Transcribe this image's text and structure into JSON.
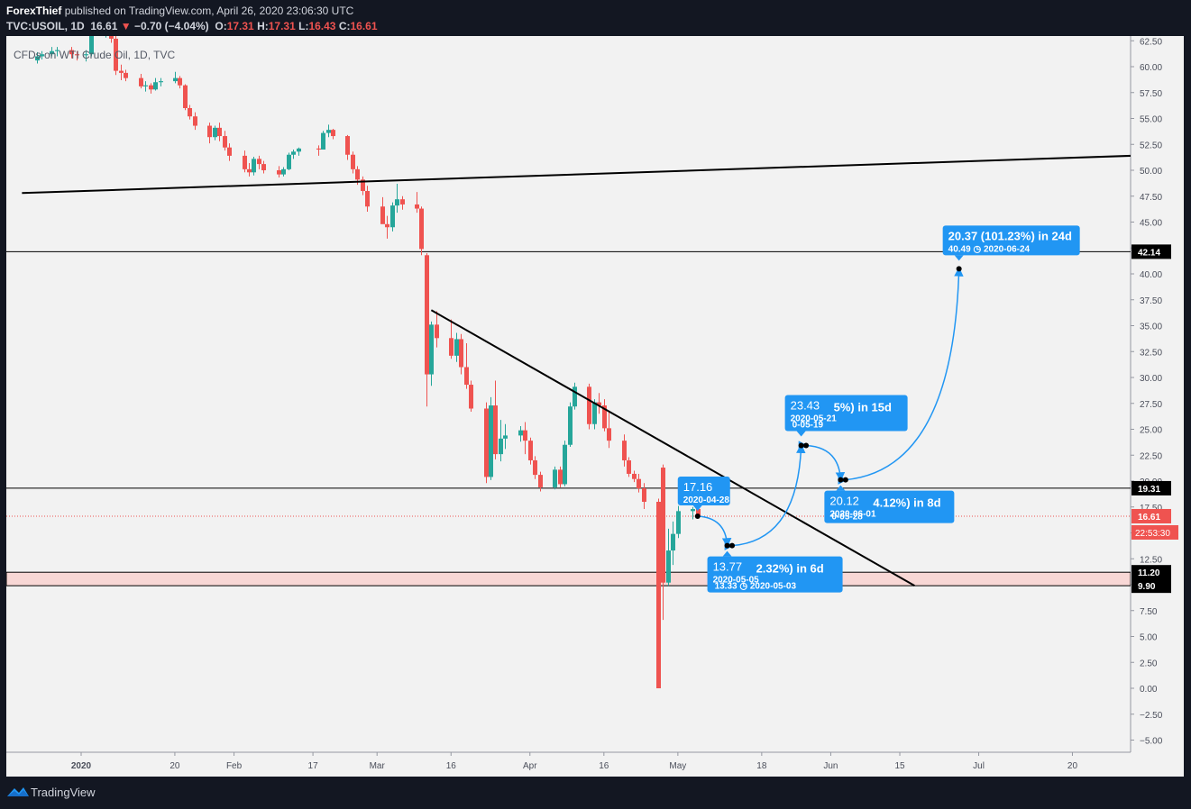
{
  "header": {
    "publisher": "ForexThief",
    "published_text": "published on TradingView.com, April 26, 2020 23:06:30 UTC",
    "symbol": "TVC:USOIL, 1D",
    "last": "16.61",
    "change": "−0.70 (−4.04%)",
    "o_label": "O:",
    "o": "17.31",
    "h_label": "H:",
    "h": "17.31",
    "l_label": "L:",
    "l": "16.43",
    "c_label": "C:",
    "c": "16.61"
  },
  "legend_text": "CFDs on WTI Crude Oil, 1D, TVC",
  "footer": {
    "brand": "TradingView"
  },
  "colors": {
    "up": "#26a69a",
    "down": "#ef5350",
    "accent": "#2196f3",
    "zone": "#f8d7d5",
    "background": "#f2f2f2"
  },
  "chart_data": {
    "type": "candlestick",
    "ylim": [
      -6,
      63
    ],
    "y_ticks": [
      "62.50",
      "60.00",
      "57.50",
      "55.00",
      "52.50",
      "50.00",
      "47.50",
      "45.00",
      "42.50",
      "40.00",
      "37.50",
      "35.00",
      "32.50",
      "30.00",
      "27.50",
      "25.00",
      "22.50",
      "20.00",
      "17.50",
      "15.00",
      "12.50",
      "10.00",
      "7.50",
      "5.00",
      "2.50",
      "0.00",
      "−2.50",
      "−5.00"
    ],
    "x_ticks": [
      {
        "label": "2020",
        "date": "2020-01-01"
      },
      {
        "label": "20",
        "date": "2020-01-20"
      },
      {
        "label": "Feb",
        "date": "2020-02-01"
      },
      {
        "label": "17",
        "date": "2020-02-17"
      },
      {
        "label": "Mar",
        "date": "2020-03-01"
      },
      {
        "label": "16",
        "date": "2020-03-16"
      },
      {
        "label": "Apr",
        "date": "2020-04-01"
      },
      {
        "label": "16",
        "date": "2020-04-16"
      },
      {
        "label": "May",
        "date": "2020-05-01"
      },
      {
        "label": "18",
        "date": "2020-05-18"
      },
      {
        "label": "Jun",
        "date": "2020-06-01"
      },
      {
        "label": "15",
        "date": "2020-06-15"
      },
      {
        "label": "Jul",
        "date": "2020-07-01"
      },
      {
        "label": "20",
        "date": "2020-07-20"
      }
    ],
    "candles": [
      {
        "d": "2019-12-23",
        "o": 60.6,
        "h": 61.4,
        "l": 60.3,
        "c": 61.0
      },
      {
        "d": "2019-12-24",
        "o": 61.0,
        "h": 61.5,
        "l": 60.7,
        "c": 61.2
      },
      {
        "d": "2019-12-26",
        "o": 61.2,
        "h": 61.9,
        "l": 61.0,
        "c": 61.5
      },
      {
        "d": "2019-12-27",
        "o": 61.5,
        "h": 61.9,
        "l": 61.0,
        "c": 61.6
      },
      {
        "d": "2019-12-30",
        "o": 61.6,
        "h": 61.9,
        "l": 60.8,
        "c": 61.2
      },
      {
        "d": "2019-12-31",
        "o": 61.2,
        "h": 61.5,
        "l": 60.6,
        "c": 61.1
      },
      {
        "d": "2020-01-02",
        "o": 61.1,
        "h": 61.6,
        "l": 60.5,
        "c": 61.2
      },
      {
        "d": "2020-01-03",
        "o": 61.2,
        "h": 63.8,
        "l": 61.0,
        "c": 63.0
      },
      {
        "d": "2020-01-06",
        "o": 63.0,
        "h": 64.8,
        "l": 62.8,
        "c": 63.3
      },
      {
        "d": "2020-01-07",
        "o": 63.3,
        "h": 63.7,
        "l": 62.3,
        "c": 62.7
      },
      {
        "d": "2020-01-08",
        "o": 62.7,
        "h": 65.6,
        "l": 59.2,
        "c": 59.6
      },
      {
        "d": "2020-01-09",
        "o": 59.6,
        "h": 60.2,
        "l": 58.7,
        "c": 59.4
      },
      {
        "d": "2020-01-10",
        "o": 59.4,
        "h": 59.7,
        "l": 58.6,
        "c": 58.9
      },
      {
        "d": "2020-01-13",
        "o": 58.9,
        "h": 59.3,
        "l": 57.9,
        "c": 58.1
      },
      {
        "d": "2020-01-14",
        "o": 58.1,
        "h": 58.6,
        "l": 57.6,
        "c": 58.2
      },
      {
        "d": "2020-01-15",
        "o": 58.2,
        "h": 58.4,
        "l": 57.4,
        "c": 57.8
      },
      {
        "d": "2020-01-16",
        "o": 57.8,
        "h": 58.9,
        "l": 57.7,
        "c": 58.5
      },
      {
        "d": "2020-01-17",
        "o": 58.5,
        "h": 58.9,
        "l": 58.1,
        "c": 58.6
      },
      {
        "d": "2020-01-20",
        "o": 58.6,
        "h": 59.5,
        "l": 58.4,
        "c": 58.9
      },
      {
        "d": "2020-01-21",
        "o": 58.9,
        "h": 59.1,
        "l": 57.9,
        "c": 58.2
      },
      {
        "d": "2020-01-22",
        "o": 58.2,
        "h": 58.3,
        "l": 55.8,
        "c": 56.0
      },
      {
        "d": "2020-01-23",
        "o": 56.0,
        "h": 56.3,
        "l": 54.9,
        "c": 55.2
      },
      {
        "d": "2020-01-24",
        "o": 55.2,
        "h": 55.6,
        "l": 53.9,
        "c": 54.3
      },
      {
        "d": "2020-01-27",
        "o": 54.3,
        "h": 54.6,
        "l": 52.6,
        "c": 53.2
      },
      {
        "d": "2020-01-28",
        "o": 53.2,
        "h": 54.3,
        "l": 52.9,
        "c": 54.1
      },
      {
        "d": "2020-01-29",
        "o": 54.1,
        "h": 54.6,
        "l": 52.8,
        "c": 53.3
      },
      {
        "d": "2020-01-30",
        "o": 53.3,
        "h": 53.8,
        "l": 51.9,
        "c": 52.2
      },
      {
        "d": "2020-01-31",
        "o": 52.2,
        "h": 52.6,
        "l": 50.9,
        "c": 51.4
      },
      {
        "d": "2020-02-03",
        "o": 51.4,
        "h": 51.9,
        "l": 49.8,
        "c": 50.1
      },
      {
        "d": "2020-02-04",
        "o": 50.1,
        "h": 50.7,
        "l": 49.4,
        "c": 49.8
      },
      {
        "d": "2020-02-05",
        "o": 49.8,
        "h": 51.3,
        "l": 49.5,
        "c": 51.1
      },
      {
        "d": "2020-02-06",
        "o": 51.1,
        "h": 51.4,
        "l": 50.1,
        "c": 50.6
      },
      {
        "d": "2020-02-07",
        "o": 50.6,
        "h": 50.9,
        "l": 49.7,
        "c": 50.0
      },
      {
        "d": "2020-02-10",
        "o": 50.0,
        "h": 50.4,
        "l": 49.3,
        "c": 49.6
      },
      {
        "d": "2020-02-11",
        "o": 49.6,
        "h": 50.3,
        "l": 49.4,
        "c": 50.1
      },
      {
        "d": "2020-02-12",
        "o": 50.1,
        "h": 51.7,
        "l": 50.0,
        "c": 51.5
      },
      {
        "d": "2020-02-13",
        "o": 51.5,
        "h": 52.0,
        "l": 51.1,
        "c": 51.8
      },
      {
        "d": "2020-02-14",
        "o": 51.8,
        "h": 52.2,
        "l": 51.4,
        "c": 52.1
      },
      {
        "d": "2020-02-18",
        "o": 52.1,
        "h": 52.4,
        "l": 51.4,
        "c": 52.0
      },
      {
        "d": "2020-02-19",
        "o": 52.0,
        "h": 53.8,
        "l": 52.0,
        "c": 53.6
      },
      {
        "d": "2020-02-20",
        "o": 53.6,
        "h": 54.4,
        "l": 53.2,
        "c": 53.9
      },
      {
        "d": "2020-02-21",
        "o": 53.9,
        "h": 54.0,
        "l": 53.0,
        "c": 53.3
      },
      {
        "d": "2020-02-24",
        "o": 53.3,
        "h": 53.4,
        "l": 51.0,
        "c": 51.5
      },
      {
        "d": "2020-02-25",
        "o": 51.5,
        "h": 51.8,
        "l": 49.7,
        "c": 50.1
      },
      {
        "d": "2020-02-26",
        "o": 50.1,
        "h": 50.4,
        "l": 48.6,
        "c": 49.1
      },
      {
        "d": "2020-02-27",
        "o": 49.1,
        "h": 49.4,
        "l": 47.6,
        "c": 48.0
      },
      {
        "d": "2020-02-28",
        "o": 48.0,
        "h": 48.5,
        "l": 46.0,
        "c": 46.5
      },
      {
        "d": "2020-03-02",
        "o": 46.5,
        "h": 47.4,
        "l": 44.9,
        "c": 44.8
      },
      {
        "d": "2020-03-03",
        "o": 44.8,
        "h": 45.6,
        "l": 43.4,
        "c": 44.5
      },
      {
        "d": "2020-03-04",
        "o": 44.5,
        "h": 46.9,
        "l": 44.1,
        "c": 46.6
      },
      {
        "d": "2020-03-05",
        "o": 46.6,
        "h": 48.7,
        "l": 45.9,
        "c": 47.2
      },
      {
        "d": "2020-03-06",
        "o": 47.2,
        "h": 47.5,
        "l": 46.2,
        "c": 46.7
      },
      {
        "d": "2020-03-09",
        "o": 46.7,
        "h": 47.9,
        "l": 45.9,
        "c": 46.3
      },
      {
        "d": "2020-03-10",
        "o": 46.3,
        "h": 46.5,
        "l": 41.8,
        "c": 42.4
      },
      {
        "d": "2020-03-11",
        "o": 41.8,
        "h": 42.0,
        "l": 27.2,
        "c": 30.3
      },
      {
        "d": "2020-03-12",
        "o": 30.3,
        "h": 35.4,
        "l": 29.2,
        "c": 35.1
      },
      {
        "d": "2020-03-13",
        "o": 35.1,
        "h": 36.4,
        "l": 32.9,
        "c": 33.8
      },
      {
        "d": "2020-03-16",
        "o": 33.8,
        "h": 35.6,
        "l": 31.8,
        "c": 32.1
      },
      {
        "d": "2020-03-17",
        "o": 32.1,
        "h": 34.3,
        "l": 31.5,
        "c": 33.7
      },
      {
        "d": "2020-03-18",
        "o": 33.7,
        "h": 34.2,
        "l": 30.3,
        "c": 31.0
      },
      {
        "d": "2020-03-19",
        "o": 31.0,
        "h": 33.3,
        "l": 28.9,
        "c": 29.3
      },
      {
        "d": "2020-03-20",
        "o": 29.3,
        "h": 29.7,
        "l": 26.7,
        "c": 27.0
      },
      {
        "d": "2020-03-23",
        "o": 27.0,
        "h": 27.6,
        "l": 19.8,
        "c": 20.4
      },
      {
        "d": "2020-03-24",
        "o": 20.4,
        "h": 28.1,
        "l": 20.1,
        "c": 27.3
      },
      {
        "d": "2020-03-25",
        "o": 27.3,
        "h": 29.7,
        "l": 22.1,
        "c": 22.6
      },
      {
        "d": "2020-03-26",
        "o": 22.6,
        "h": 25.9,
        "l": 21.9,
        "c": 24.1
      },
      {
        "d": "2020-03-27",
        "o": 24.1,
        "h": 25.5,
        "l": 23.1,
        "c": 24.4
      },
      {
        "d": "2020-03-30",
        "o": 24.4,
        "h": 25.3,
        "l": 23.8,
        "c": 24.9
      },
      {
        "d": "2020-03-31",
        "o": 24.9,
        "h": 25.7,
        "l": 22.6,
        "c": 23.9
      },
      {
        "d": "2020-04-01",
        "o": 23.9,
        "h": 24.2,
        "l": 21.6,
        "c": 22.0
      },
      {
        "d": "2020-04-02",
        "o": 22.0,
        "h": 22.4,
        "l": 20.2,
        "c": 20.6
      },
      {
        "d": "2020-04-03",
        "o": 20.6,
        "h": 20.9,
        "l": 19.0,
        "c": 19.4
      },
      {
        "d": "2020-04-06",
        "o": 19.4,
        "h": 21.4,
        "l": 19.2,
        "c": 21.1
      },
      {
        "d": "2020-04-07",
        "o": 21.1,
        "h": 21.4,
        "l": 19.4,
        "c": 19.7
      },
      {
        "d": "2020-04-08",
        "o": 19.7,
        "h": 23.9,
        "l": 19.5,
        "c": 23.5
      },
      {
        "d": "2020-04-09",
        "o": 23.5,
        "h": 27.6,
        "l": 23.3,
        "c": 27.2
      },
      {
        "d": "2020-04-10",
        "o": 27.2,
        "h": 29.5,
        "l": 26.9,
        "c": 29.1
      },
      {
        "d": "2020-04-13",
        "o": 29.1,
        "h": 29.4,
        "l": 25.0,
        "c": 25.5
      },
      {
        "d": "2020-04-14",
        "o": 25.5,
        "h": 27.9,
        "l": 25.0,
        "c": 27.6
      },
      {
        "d": "2020-04-15",
        "o": 27.6,
        "h": 28.5,
        "l": 26.5,
        "c": 27.3
      },
      {
        "d": "2020-04-16",
        "o": 27.3,
        "h": 27.9,
        "l": 24.8,
        "c": 25.1
      },
      {
        "d": "2020-04-17",
        "o": 25.1,
        "h": 26.7,
        "l": 23.2,
        "c": 23.9
      },
      {
        "d": "2020-04-20",
        "o": 23.9,
        "h": 24.5,
        "l": 21.4,
        "c": 22.0
      },
      {
        "d": "2020-04-21",
        "o": 22.0,
        "h": 22.3,
        "l": 20.4,
        "c": 20.7
      },
      {
        "d": "2020-04-22",
        "o": 20.7,
        "h": 21.0,
        "l": 19.9,
        "c": 20.2
      },
      {
        "d": "2020-04-23",
        "o": 20.2,
        "h": 20.7,
        "l": 18.9,
        "c": 19.3
      },
      {
        "d": "2020-04-24",
        "o": 19.3,
        "h": 19.8,
        "l": 17.3,
        "c": 18.0
      },
      {
        "d": "2020-04-27",
        "o": 18.0,
        "h": 18.3,
        "l": 0.0,
        "c": 0.0
      },
      {
        "d": "2020-04-28",
        "o": 21.3,
        "h": 21.6,
        "l": 6.6,
        "c": 10.2
      },
      {
        "d": "2020-04-29",
        "o": 10.2,
        "h": 15.4,
        "l": 9.9,
        "c": 13.3
      },
      {
        "d": "2020-04-30",
        "o": 13.3,
        "h": 16.1,
        "l": 11.9,
        "c": 14.9
      },
      {
        "d": "2020-05-01",
        "o": 14.9,
        "h": 17.6,
        "l": 14.5,
        "c": 17.1
      },
      {
        "d": "2020-05-04",
        "o": 17.1,
        "h": 17.5,
        "l": 16.3,
        "c": 17.3
      },
      {
        "d": "2020-05-05",
        "o": 17.31,
        "h": 17.31,
        "l": 16.43,
        "c": 16.61
      }
    ],
    "trendlines": [
      {
        "name": "resistance-long",
        "from": {
          "d": "2019-12-20",
          "v": 47.8
        },
        "to": {
          "d": "2020-08-01",
          "v": 51.4
        }
      },
      {
        "name": "descending",
        "from": {
          "d": "2020-03-12",
          "v": 36.5
        },
        "to": {
          "d": "2020-06-18",
          "v": 9.9
        }
      }
    ],
    "hlines": [
      {
        "value": 42.14,
        "label": "42.14"
      },
      {
        "value": 19.31,
        "label": "19.31"
      }
    ],
    "zone": {
      "top": 11.2,
      "bottom": 9.9,
      "top_label": "11.20",
      "bottom_label": "9.90"
    },
    "current_price": {
      "value": 16.61,
      "label": "16.61",
      "countdown": "22:53:30"
    },
    "projection": [
      {
        "d": "2020-05-05",
        "v": 16.61
      },
      {
        "d": "2020-05-11",
        "v": 13.77
      },
      {
        "d": "2020-05-12",
        "v": 13.77
      },
      {
        "d": "2020-05-26",
        "v": 23.43
      },
      {
        "d": "2020-05-27",
        "v": 23.43
      },
      {
        "d": "2020-06-03",
        "v": 20.12
      },
      {
        "d": "2020-06-04",
        "v": 20.12
      },
      {
        "d": "2020-06-27",
        "v": 40.49
      }
    ],
    "callouts": [
      {
        "name": "callout-1",
        "anchor": {
          "d": "2020-05-05",
          "v": 16.61
        },
        "main": "17.16",
        "sub": "2020-04-28"
      },
      {
        "name": "callout-2",
        "anchor": {
          "d": "2020-05-11",
          "v": 13.77
        },
        "main": "13.77",
        "tail_main": "2.32%) in 6d",
        "sub": "2020-05-05",
        "tail_sub": "13.33 ◷ 2020-05-03"
      },
      {
        "name": "callout-3",
        "anchor": {
          "d": "2020-05-26",
          "v": 23.43
        },
        "main": "23.43",
        "tail_main": "5%) in 15d",
        "sub": "2020-05-21",
        "tail_sub": "0-05-19"
      },
      {
        "name": "callout-4",
        "anchor": {
          "d": "2020-06-03",
          "v": 20.12
        },
        "main": "20.12",
        "tail_main": "4.12%) in 8d",
        "sub": "2020-06-01",
        "tail_sub": "0-05-28"
      },
      {
        "name": "callout-5",
        "anchor": {
          "d": "2020-06-27",
          "v": 40.49
        },
        "main": "20.37 (101.23%) in 24d",
        "sub": "40.49 ◷ 2020-06-24"
      }
    ]
  }
}
